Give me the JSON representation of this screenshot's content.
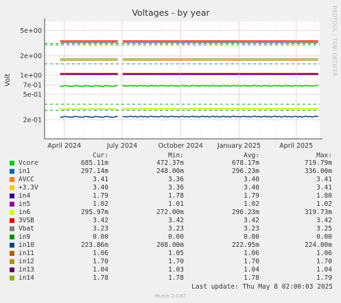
{
  "chart_data": {
    "type": "line",
    "title": "Voltages - by year",
    "ylabel": "Volt",
    "y_scale": "log",
    "ylim": [
      0.1,
      7
    ],
    "y_ticks": [
      {
        "value": 5,
        "label": "5e+00"
      },
      {
        "value": 2,
        "label": "2e+00"
      },
      {
        "value": 1,
        "label": "1e+00"
      },
      {
        "value": 0.7,
        "label": "7e-01"
      },
      {
        "value": 0.5,
        "label": "5e-01"
      },
      {
        "value": 0.2,
        "label": "2e-01"
      }
    ],
    "x_range": [
      "2024-03-01",
      "2025-05-08"
    ],
    "x_ticks": [
      {
        "value": "2024-04-01",
        "label": "April 2024"
      },
      {
        "value": "2024-07-01",
        "label": "July 2024"
      },
      {
        "value": "2024-10-01",
        "label": "October 2024"
      },
      {
        "value": "2025-01-01",
        "label": "January 2025"
      },
      {
        "value": "2025-04-01",
        "label": "April 2025"
      }
    ],
    "gap": [
      "2024-06-26",
      "2024-07-02"
    ],
    "side_text": "RRDTOOL / TOBI OETIKER",
    "warning_lines": [
      {
        "value": 3.135,
        "color": "#00aa00"
      },
      {
        "value": 2.97,
        "color": "#00aa00"
      },
      {
        "value": 1.5,
        "color": "#00aa00"
      },
      {
        "value": 0.35,
        "color": "#00aa00"
      },
      {
        "value": 0.28,
        "color": "#00aa00"
      }
    ],
    "columns": [
      "Cur:",
      "Min:",
      "Avg:",
      "Max:"
    ],
    "series": [
      {
        "name": "Vcore",
        "color": "#00cc00",
        "cur": "685.11m",
        "min": "472.37m",
        "avg": "678.17m",
        "max": "719.79m",
        "value": 0.678
      },
      {
        "name": "in1",
        "color": "#0066b3",
        "cur": "297.14m",
        "min": "248.00m",
        "avg": "296.23m",
        "max": "336.00m",
        "value": 0.296
      },
      {
        "name": "AVCC",
        "color": "#ff8000",
        "cur": "3.41",
        "min": "3.36",
        "avg": "3.40",
        "max": "3.41",
        "value": 3.4
      },
      {
        "name": "+3.3V",
        "color": "#ffcc00",
        "cur": "3.40",
        "min": "3.36",
        "avg": "3.40",
        "max": "3.41",
        "value": 3.4
      },
      {
        "name": "in4",
        "color": "#330099",
        "cur": "1.79",
        "min": "1.78",
        "avg": "1.79",
        "max": "1.80",
        "value": 1.79
      },
      {
        "name": "in5",
        "color": "#990099",
        "cur": "1.02",
        "min": "1.01",
        "avg": "1.02",
        "max": "1.02",
        "value": 1.02
      },
      {
        "name": "in6",
        "color": "#ccff00",
        "cur": "295.97m",
        "min": "272.00m",
        "avg": "296.23m",
        "max": "319.73m",
        "value": 0.296
      },
      {
        "name": "3VSB",
        "color": "#ff0000",
        "cur": "3.42",
        "min": "3.42",
        "avg": "3.42",
        "max": "3.42",
        "value": 3.42
      },
      {
        "name": "Vbat",
        "color": "#808080",
        "cur": "3.23",
        "min": "3.23",
        "avg": "3.23",
        "max": "3.25",
        "value": 3.23
      },
      {
        "name": "in9",
        "color": "#008f00",
        "cur": "0.00",
        "min": "0.00",
        "avg": "0.00",
        "max": "0.00",
        "value": 0
      },
      {
        "name": "in10",
        "color": "#00487d",
        "cur": "223.86m",
        "min": "208.00m",
        "avg": "222.95m",
        "max": "224.00m",
        "value": 0.223
      },
      {
        "name": "in11",
        "color": "#b35a00",
        "cur": "1.06",
        "min": "1.05",
        "avg": "1.06",
        "max": "1.06",
        "value": 1.06
      },
      {
        "name": "in12",
        "color": "#b38f00",
        "cur": "1.70",
        "min": "1.70",
        "avg": "1.70",
        "max": "1.70",
        "value": 1.7
      },
      {
        "name": "in13",
        "color": "#6b006b",
        "cur": "1.04",
        "min": "1.03",
        "avg": "1.04",
        "max": "1.04",
        "value": 1.04
      },
      {
        "name": "in14",
        "color": "#8fb300",
        "cur": "1.78",
        "min": "1.78",
        "avg": "1.78",
        "max": "1.79",
        "value": 1.78
      }
    ]
  },
  "footer": {
    "last_update": "Last update: Thu May  8 02:00:03 2025",
    "version": "Munin 2.0.67"
  }
}
